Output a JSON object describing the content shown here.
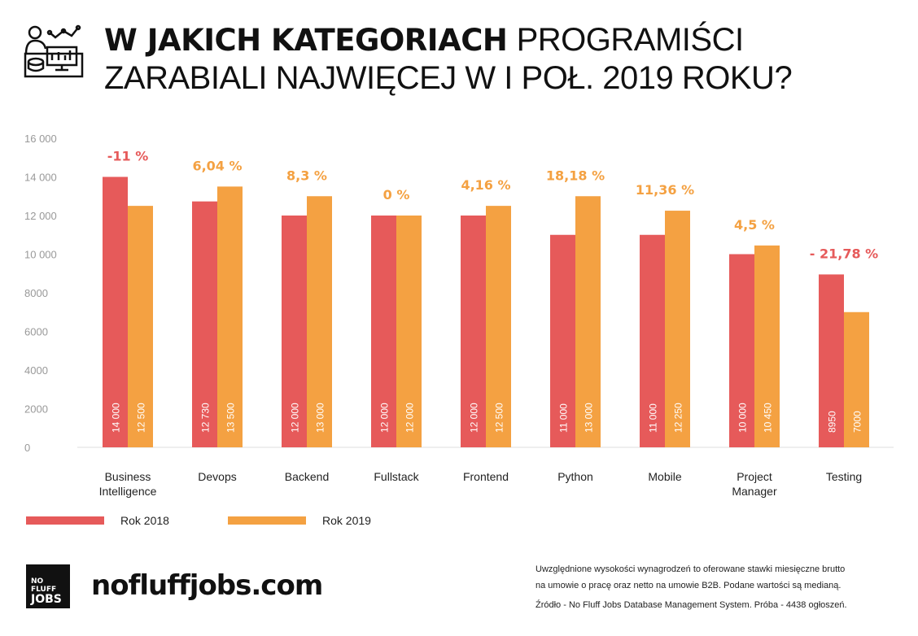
{
  "header": {
    "title_bold": "W JAKICH KATEGORIACH",
    "title_rest_1": "PROGRAMIŚCI",
    "title_line_2": "ZARABIALI NAJWIĘCEJ W I POŁ. 2019 ROKU?"
  },
  "chart_data": {
    "type": "bar",
    "categories": [
      "Business Intelligence",
      "Devops",
      "Backend",
      "Fullstack",
      "Frontend",
      "Python",
      "Mobile",
      "Project Manager",
      "Testing"
    ],
    "category_lines": [
      [
        "Business",
        "Intelligence"
      ],
      [
        "Devops"
      ],
      [
        "Backend"
      ],
      [
        "Fullstack"
      ],
      [
        "Frontend"
      ],
      [
        "Python"
      ],
      [
        "Mobile"
      ],
      [
        "Project",
        "Manager"
      ],
      [
        "Testing"
      ]
    ],
    "series": [
      {
        "name": "Rok 2018",
        "color": "#e65a5a",
        "values": [
          14000,
          12730,
          12000,
          12000,
          12000,
          11000,
          11000,
          10000,
          8950
        ],
        "labels": [
          "14 000",
          "12 730",
          "12 000",
          "12 000",
          "12 000",
          "11 000",
          "11 000",
          "10 000",
          "8950"
        ]
      },
      {
        "name": "Rok 2019",
        "color": "#f4a142",
        "values": [
          12500,
          13500,
          13000,
          12000,
          12500,
          13000,
          12250,
          10450,
          7000
        ],
        "labels": [
          "12 500",
          "13 500",
          "13 000",
          "12 000",
          "12 500",
          "13 000",
          "12 250",
          "10 450",
          "7000"
        ]
      }
    ],
    "change_labels": [
      "-11 %",
      "6,04 %",
      "8,3 %",
      "0 %",
      "4,16 %",
      "18,18 %",
      "11,36 %",
      "4,5 %",
      "- 21,78 %"
    ],
    "change_negative": [
      true,
      false,
      false,
      false,
      false,
      false,
      false,
      false,
      true
    ],
    "ylim": [
      0,
      16000
    ],
    "yticks": [
      0,
      2000,
      4000,
      6000,
      8000,
      10000,
      12000,
      14000,
      16000
    ],
    "ytick_labels": [
      "0",
      "2000",
      "4000",
      "6000",
      "8000",
      "10 000",
      "12 000",
      "14 000",
      "16 000"
    ],
    "grid": false,
    "legend": "bottom-left"
  },
  "footer": {
    "logo_text_1": "NO FLUFF",
    "logo_text_2": "JOBS",
    "site": "nofluffjobs.com",
    "note_1": "Uwzględnione wysokości wynagrodzeń to oferowane stawki miesięczne brutto",
    "note_2": "na umowie o pracę oraz netto na umowie B2B. Podane wartości są medianą.",
    "source": "Źródło - No Fluff Jobs Database Management System. Próba - 4438 ogłoszeń."
  }
}
